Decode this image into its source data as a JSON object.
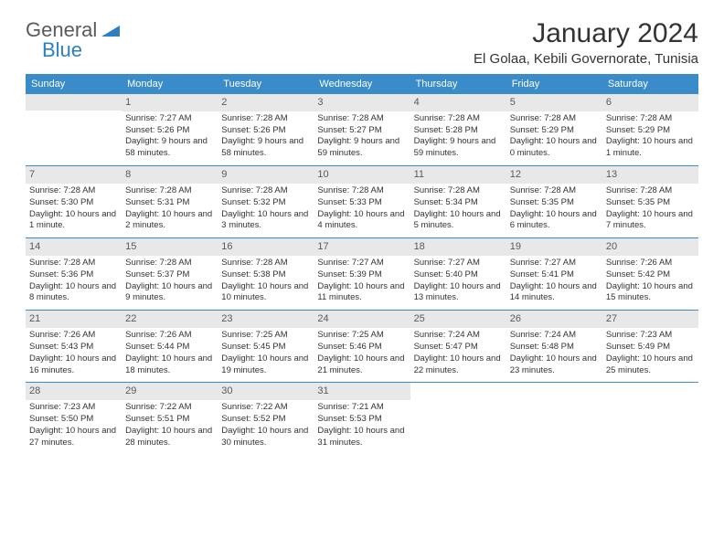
{
  "logo": {
    "text_general": "General",
    "text_blue": "Blue"
  },
  "header": {
    "month_title": "January 2024",
    "location": "El Golaa, Kebili Governorate, Tunisia"
  },
  "day_headers": [
    "Sunday",
    "Monday",
    "Tuesday",
    "Wednesday",
    "Thursday",
    "Friday",
    "Saturday"
  ],
  "colors": {
    "header_bg": "#3a8bc9",
    "header_text": "#ffffff",
    "date_bar_bg": "#e8e8e8",
    "date_bar_text": "#5a5a5a",
    "row_border": "#3a8bc9",
    "logo_blue": "#2d7fc1",
    "logo_gray": "#5a5a5a"
  },
  "weeks": [
    [
      {
        "date": "",
        "sunrise": "",
        "sunset": "",
        "daylight": ""
      },
      {
        "date": "1",
        "sunrise": "Sunrise: 7:27 AM",
        "sunset": "Sunset: 5:26 PM",
        "daylight": "Daylight: 9 hours and 58 minutes."
      },
      {
        "date": "2",
        "sunrise": "Sunrise: 7:28 AM",
        "sunset": "Sunset: 5:26 PM",
        "daylight": "Daylight: 9 hours and 58 minutes."
      },
      {
        "date": "3",
        "sunrise": "Sunrise: 7:28 AM",
        "sunset": "Sunset: 5:27 PM",
        "daylight": "Daylight: 9 hours and 59 minutes."
      },
      {
        "date": "4",
        "sunrise": "Sunrise: 7:28 AM",
        "sunset": "Sunset: 5:28 PM",
        "daylight": "Daylight: 9 hours and 59 minutes."
      },
      {
        "date": "5",
        "sunrise": "Sunrise: 7:28 AM",
        "sunset": "Sunset: 5:29 PM",
        "daylight": "Daylight: 10 hours and 0 minutes."
      },
      {
        "date": "6",
        "sunrise": "Sunrise: 7:28 AM",
        "sunset": "Sunset: 5:29 PM",
        "daylight": "Daylight: 10 hours and 1 minute."
      }
    ],
    [
      {
        "date": "7",
        "sunrise": "Sunrise: 7:28 AM",
        "sunset": "Sunset: 5:30 PM",
        "daylight": "Daylight: 10 hours and 1 minute."
      },
      {
        "date": "8",
        "sunrise": "Sunrise: 7:28 AM",
        "sunset": "Sunset: 5:31 PM",
        "daylight": "Daylight: 10 hours and 2 minutes."
      },
      {
        "date": "9",
        "sunrise": "Sunrise: 7:28 AM",
        "sunset": "Sunset: 5:32 PM",
        "daylight": "Daylight: 10 hours and 3 minutes."
      },
      {
        "date": "10",
        "sunrise": "Sunrise: 7:28 AM",
        "sunset": "Sunset: 5:33 PM",
        "daylight": "Daylight: 10 hours and 4 minutes."
      },
      {
        "date": "11",
        "sunrise": "Sunrise: 7:28 AM",
        "sunset": "Sunset: 5:34 PM",
        "daylight": "Daylight: 10 hours and 5 minutes."
      },
      {
        "date": "12",
        "sunrise": "Sunrise: 7:28 AM",
        "sunset": "Sunset: 5:35 PM",
        "daylight": "Daylight: 10 hours and 6 minutes."
      },
      {
        "date": "13",
        "sunrise": "Sunrise: 7:28 AM",
        "sunset": "Sunset: 5:35 PM",
        "daylight": "Daylight: 10 hours and 7 minutes."
      }
    ],
    [
      {
        "date": "14",
        "sunrise": "Sunrise: 7:28 AM",
        "sunset": "Sunset: 5:36 PM",
        "daylight": "Daylight: 10 hours and 8 minutes."
      },
      {
        "date": "15",
        "sunrise": "Sunrise: 7:28 AM",
        "sunset": "Sunset: 5:37 PM",
        "daylight": "Daylight: 10 hours and 9 minutes."
      },
      {
        "date": "16",
        "sunrise": "Sunrise: 7:28 AM",
        "sunset": "Sunset: 5:38 PM",
        "daylight": "Daylight: 10 hours and 10 minutes."
      },
      {
        "date": "17",
        "sunrise": "Sunrise: 7:27 AM",
        "sunset": "Sunset: 5:39 PM",
        "daylight": "Daylight: 10 hours and 11 minutes."
      },
      {
        "date": "18",
        "sunrise": "Sunrise: 7:27 AM",
        "sunset": "Sunset: 5:40 PM",
        "daylight": "Daylight: 10 hours and 13 minutes."
      },
      {
        "date": "19",
        "sunrise": "Sunrise: 7:27 AM",
        "sunset": "Sunset: 5:41 PM",
        "daylight": "Daylight: 10 hours and 14 minutes."
      },
      {
        "date": "20",
        "sunrise": "Sunrise: 7:26 AM",
        "sunset": "Sunset: 5:42 PM",
        "daylight": "Daylight: 10 hours and 15 minutes."
      }
    ],
    [
      {
        "date": "21",
        "sunrise": "Sunrise: 7:26 AM",
        "sunset": "Sunset: 5:43 PM",
        "daylight": "Daylight: 10 hours and 16 minutes."
      },
      {
        "date": "22",
        "sunrise": "Sunrise: 7:26 AM",
        "sunset": "Sunset: 5:44 PM",
        "daylight": "Daylight: 10 hours and 18 minutes."
      },
      {
        "date": "23",
        "sunrise": "Sunrise: 7:25 AM",
        "sunset": "Sunset: 5:45 PM",
        "daylight": "Daylight: 10 hours and 19 minutes."
      },
      {
        "date": "24",
        "sunrise": "Sunrise: 7:25 AM",
        "sunset": "Sunset: 5:46 PM",
        "daylight": "Daylight: 10 hours and 21 minutes."
      },
      {
        "date": "25",
        "sunrise": "Sunrise: 7:24 AM",
        "sunset": "Sunset: 5:47 PM",
        "daylight": "Daylight: 10 hours and 22 minutes."
      },
      {
        "date": "26",
        "sunrise": "Sunrise: 7:24 AM",
        "sunset": "Sunset: 5:48 PM",
        "daylight": "Daylight: 10 hours and 23 minutes."
      },
      {
        "date": "27",
        "sunrise": "Sunrise: 7:23 AM",
        "sunset": "Sunset: 5:49 PM",
        "daylight": "Daylight: 10 hours and 25 minutes."
      }
    ],
    [
      {
        "date": "28",
        "sunrise": "Sunrise: 7:23 AM",
        "sunset": "Sunset: 5:50 PM",
        "daylight": "Daylight: 10 hours and 27 minutes."
      },
      {
        "date": "29",
        "sunrise": "Sunrise: 7:22 AM",
        "sunset": "Sunset: 5:51 PM",
        "daylight": "Daylight: 10 hours and 28 minutes."
      },
      {
        "date": "30",
        "sunrise": "Sunrise: 7:22 AM",
        "sunset": "Sunset: 5:52 PM",
        "daylight": "Daylight: 10 hours and 30 minutes."
      },
      {
        "date": "31",
        "sunrise": "Sunrise: 7:21 AM",
        "sunset": "Sunset: 5:53 PM",
        "daylight": "Daylight: 10 hours and 31 minutes."
      },
      {
        "date": "",
        "sunrise": "",
        "sunset": "",
        "daylight": ""
      },
      {
        "date": "",
        "sunrise": "",
        "sunset": "",
        "daylight": ""
      },
      {
        "date": "",
        "sunrise": "",
        "sunset": "",
        "daylight": ""
      }
    ]
  ]
}
